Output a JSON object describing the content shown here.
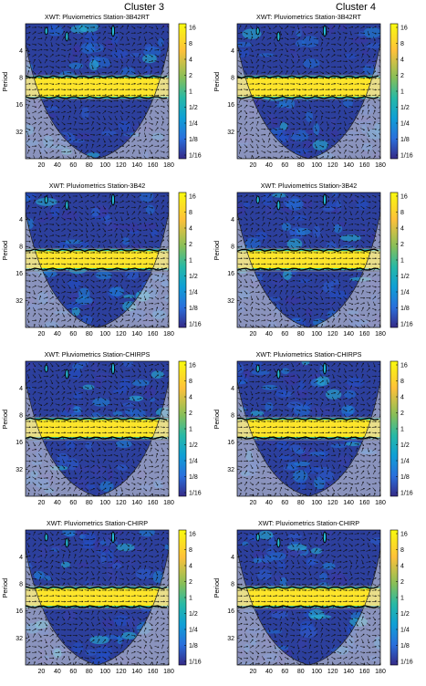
{
  "figure": {
    "columns": [
      "Cluster 3",
      "Cluster 4"
    ],
    "titles": [
      "XWT: Pluviometrics Station-3B42RT",
      "XWT: Pluviometrics Station-3B42",
      "XWT: Pluviometrics Station-CHIRPS",
      "XWT: Pluviometrics Station-CHIRP"
    ],
    "ylabel": "Period"
  },
  "chart_data": {
    "type": "heatmap",
    "subtype": "cross-wavelet transform (XWT) power with phase arrows",
    "panels": [
      {
        "column": "Cluster 3",
        "title": "XWT: Pluviometrics Station-3B42RT",
        "significant_band_period": [
          8,
          13
        ]
      },
      {
        "column": "Cluster 4",
        "title": "XWT: Pluviometrics Station-3B42RT",
        "significant_band_period": [
          8,
          13
        ]
      },
      {
        "column": "Cluster 3",
        "title": "XWT: Pluviometrics Station-3B42",
        "significant_band_period": [
          9,
          14
        ]
      },
      {
        "column": "Cluster 4",
        "title": "XWT: Pluviometrics Station-3B42",
        "significant_band_period": [
          9,
          14
        ]
      },
      {
        "column": "Cluster 3",
        "title": "XWT: Pluviometrics Station-CHIRPS",
        "significant_band_period": [
          9,
          14
        ]
      },
      {
        "column": "Cluster 4",
        "title": "XWT: Pluviometrics Station-CHIRPS",
        "significant_band_period": [
          9,
          14
        ]
      },
      {
        "column": "Cluster 3",
        "title": "XWT: Pluviometrics Station-CHIRP",
        "significant_band_period": [
          9,
          14
        ]
      },
      {
        "column": "Cluster 4",
        "title": "XWT: Pluviometrics Station-CHIRP",
        "significant_band_period": [
          9,
          14
        ]
      }
    ],
    "x_ticks": [
      "20",
      "40",
      "60",
      "80",
      "100",
      "120",
      "140",
      "160",
      "180"
    ],
    "xlim": [
      0,
      180
    ],
    "y_ticks": [
      "4",
      "8",
      "16",
      "32"
    ],
    "ylim": [
      2,
      64
    ],
    "y_scale": "log2",
    "ylabel": "Period",
    "colorbar_ticks": [
      "16",
      "8",
      "4",
      "2",
      "1",
      "1/2",
      "1/4",
      "1/8",
      "1/16"
    ],
    "colormap": "parula",
    "colors": {
      "low": "#352a87",
      "mid": "#0f9fd6",
      "high": "#f9fb0e",
      "coi_shade": "#c8c8c8"
    }
  }
}
